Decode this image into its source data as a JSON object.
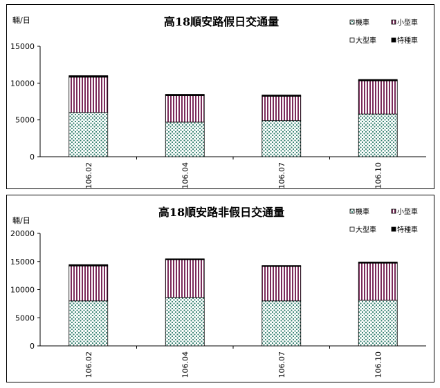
{
  "chart_data": [
    {
      "type": "bar",
      "stacked": true,
      "title": "高18順安路假日交通量",
      "ylabel": "輛/日",
      "ylim": [
        0,
        15000
      ],
      "yticks": [
        0,
        5000,
        10000,
        15000
      ],
      "categories": [
        "106.02",
        "106.04",
        "106.07",
        "106.10"
      ],
      "series": [
        {
          "name": "機車",
          "values": [
            6000,
            4700,
            4900,
            5800
          ]
        },
        {
          "name": "小型車",
          "values": [
            4800,
            3600,
            3300,
            4500
          ]
        },
        {
          "name": "大型車",
          "values": [
            60,
            60,
            60,
            60
          ]
        },
        {
          "name": "特種車",
          "values": [
            150,
            120,
            120,
            130
          ]
        }
      ],
      "legend_position": "top-right",
      "grid": false
    },
    {
      "type": "bar",
      "stacked": true,
      "title": "高18順安路非假日交通量",
      "ylabel": "輛/日",
      "ylim": [
        0,
        20000
      ],
      "yticks": [
        0,
        5000,
        10000,
        15000,
        20000
      ],
      "categories": [
        "106.02",
        "106.04",
        "106.07",
        "106.10"
      ],
      "series": [
        {
          "name": "機車",
          "values": [
            8000,
            8600,
            8000,
            8100
          ]
        },
        {
          "name": "小型車",
          "values": [
            6200,
            6700,
            6100,
            6600
          ]
        },
        {
          "name": "大型車",
          "values": [
            60,
            60,
            60,
            60
          ]
        },
        {
          "name": "特種車",
          "values": [
            180,
            120,
            120,
            150
          ]
        }
      ],
      "legend_position": "top-right",
      "grid": false
    }
  ],
  "colors": {
    "dots_bg": "#ffffff",
    "dots_fg": "#2e7d6b",
    "stripe": "#7b2a5a",
    "special": "#000000"
  }
}
